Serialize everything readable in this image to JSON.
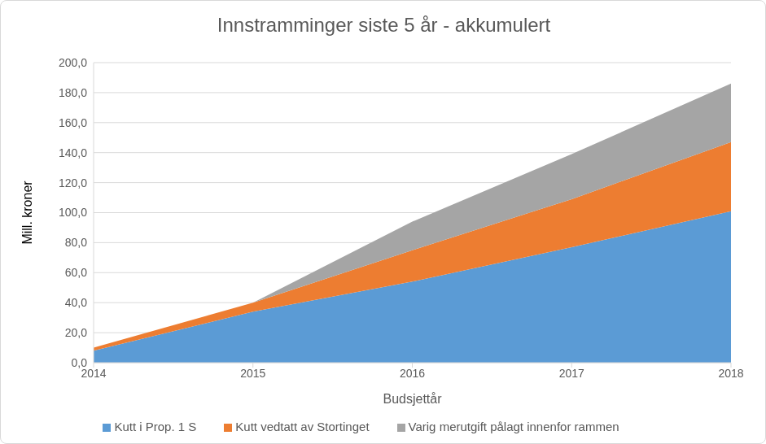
{
  "chart_data": {
    "type": "area",
    "title": "Innstramminger siste 5 år - akkumulert",
    "x_label": "Budsjettår",
    "y_label": "Mill. kroner",
    "categories": [
      "2014",
      "2015",
      "2016",
      "2017",
      "2018"
    ],
    "series": [
      {
        "name": "Kutt i Prop. 1 S",
        "color": "#5b9bd5",
        "values": [
          8,
          34,
          54,
          77,
          101
        ]
      },
      {
        "name": "Kutt vedtatt av Stortinget",
        "color": "#ed7d31",
        "values": [
          2,
          6,
          21,
          32,
          46
        ]
      },
      {
        "name": "Varig merutgift pålagt innenfor rammen",
        "color": "#a5a5a5",
        "values": [
          0,
          0,
          19,
          30,
          39
        ]
      }
    ],
    "stacked": true,
    "ylim": [
      0,
      200
    ],
    "yticks": [
      {
        "value": 0,
        "label": "0,0"
      },
      {
        "value": 20,
        "label": "20,0"
      },
      {
        "value": 40,
        "label": "40,0"
      },
      {
        "value": 60,
        "label": "60,0"
      },
      {
        "value": 80,
        "label": "80,0"
      },
      {
        "value": 100,
        "label": "100,0"
      },
      {
        "value": 120,
        "label": "120,0"
      },
      {
        "value": 140,
        "label": "140,0"
      },
      {
        "value": 160,
        "label": "160,0"
      },
      {
        "value": 180,
        "label": "180,0"
      },
      {
        "value": 200,
        "label": "200,0"
      }
    ],
    "grid": true,
    "legend": "bottom"
  }
}
